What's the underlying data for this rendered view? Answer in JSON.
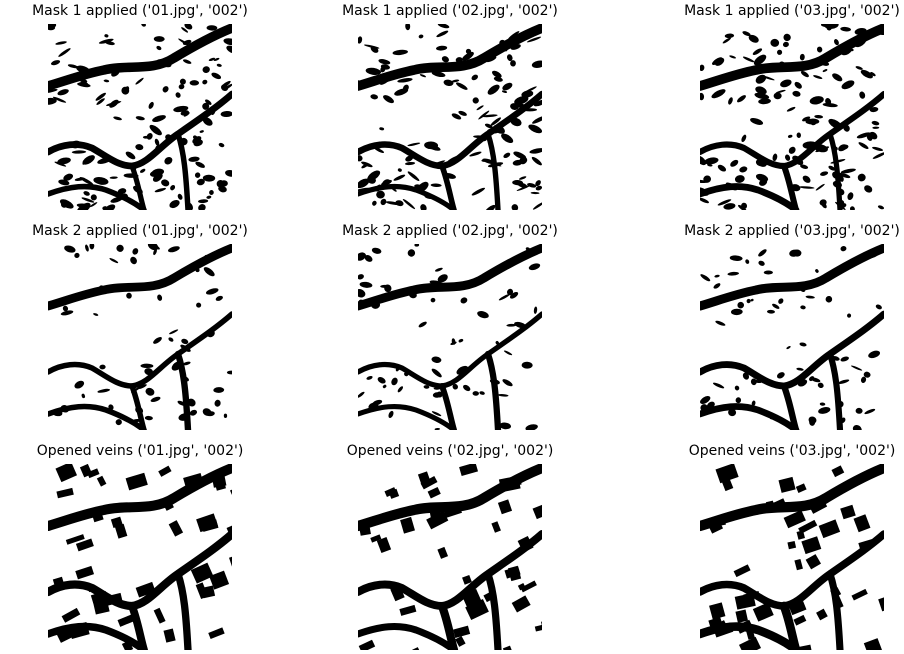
{
  "figure": {
    "rows": [
      {
        "id": "mask1",
        "panels": [
          {
            "title": "Mask 1 applied ('01.jpg', '002')",
            "seed": 11
          },
          {
            "title": "Mask 1 applied ('02.jpg', '002')",
            "seed": 12
          },
          {
            "title": "Mask 1 applied ('03.jpg', '002')",
            "seed": 13
          }
        ]
      },
      {
        "id": "mask2",
        "panels": [
          {
            "title": "Mask 2 applied ('01.jpg', '002')",
            "seed": 21
          },
          {
            "title": "Mask 2 applied ('02.jpg', '002')",
            "seed": 22
          },
          {
            "title": "Mask 2 applied ('03.jpg', '002')",
            "seed": 23
          }
        ]
      },
      {
        "id": "opened",
        "panels": [
          {
            "title": "Opened veins ('01.jpg', '002')",
            "seed": 31
          },
          {
            "title": "Opened veins ('02.jpg', '002')",
            "seed": 32
          },
          {
            "title": "Opened veins ('03.jpg', '002')",
            "seed": 33
          }
        ]
      }
    ],
    "colors": {
      "foreground": "#000000",
      "background": "#ffffff"
    }
  }
}
